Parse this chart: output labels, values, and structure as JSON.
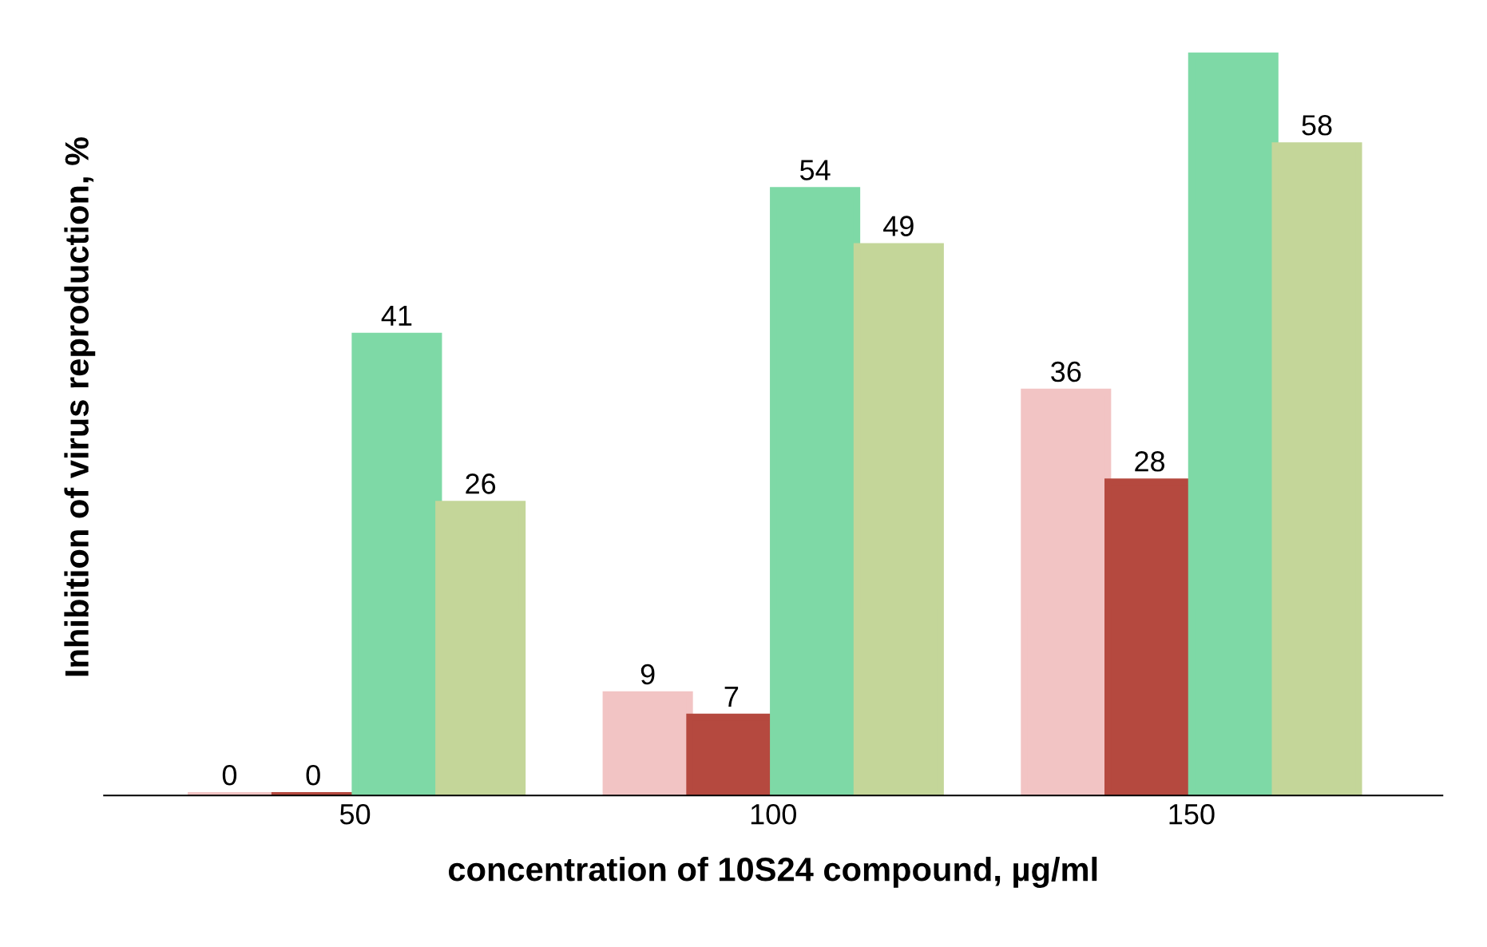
{
  "chart_data": {
    "type": "bar",
    "xlabel": "concentration of 10S24 compound, µg/ml",
    "ylabel": "Inhibition of virus reproduction, %",
    "categories": [
      "50",
      "100",
      "150"
    ],
    "series": [
      {
        "color": "#f2c4c4",
        "values": [
          0,
          9,
          36
        ],
        "value_labels": [
          "0",
          "9",
          "36"
        ]
      },
      {
        "color": "#b5493f",
        "values": [
          0,
          7,
          28
        ],
        "value_labels": [
          "0",
          "7",
          "28"
        ]
      },
      {
        "color": "#7ed9a6",
        "values": [
          41,
          54,
          66
        ],
        "value_labels": [
          "41",
          "54",
          null
        ]
      },
      {
        "color": "#c4d699",
        "values": [
          26,
          49,
          58
        ],
        "value_labels": [
          "26",
          "49",
          "58"
        ]
      }
    ],
    "tick_labels": "x",
    "grid": false,
    "legend": false
  }
}
